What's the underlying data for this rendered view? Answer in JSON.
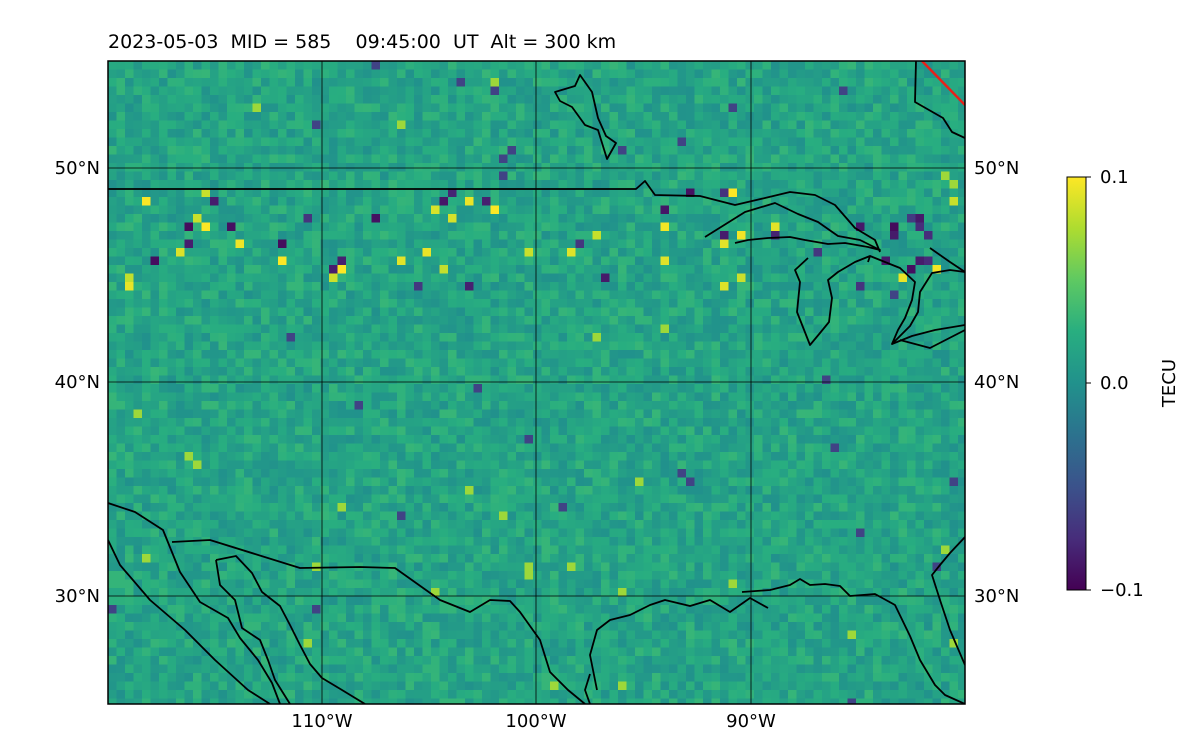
{
  "title": "2023-05-03  MID = 585    09:45:00  UT  Alt = 300 km",
  "map": {
    "lon_range": [
      -120,
      -80
    ],
    "lat_range": [
      25,
      55
    ],
    "grid": true,
    "lat_ticks": [
      {
        "value": 50,
        "label": "50°N"
      },
      {
        "value": 40,
        "label": "40°N"
      },
      {
        "value": 30,
        "label": "30°N"
      }
    ],
    "lon_ticks": [
      {
        "value": -110,
        "label": "110°W"
      },
      {
        "value": -100,
        "label": "100°W"
      },
      {
        "value": -90,
        "label": "90°W"
      }
    ],
    "field_colormap": "viridis",
    "background_value_fraction": 0.58
  },
  "colorbar": {
    "label": "TECU",
    "range": [
      -0.1,
      0.1
    ],
    "ticks": [
      {
        "value": 0.1,
        "label": "0.1"
      },
      {
        "value": 0.0,
        "label": "0.0"
      },
      {
        "value": -0.1,
        "label": "−0.1"
      }
    ]
  },
  "colors": {
    "coastline": "#000000",
    "gridline": "#000000",
    "terminator_line": "#e8201a",
    "viridis_low": "#440154",
    "viridis_mid": "#21918c",
    "viridis_high": "#fde725"
  }
}
